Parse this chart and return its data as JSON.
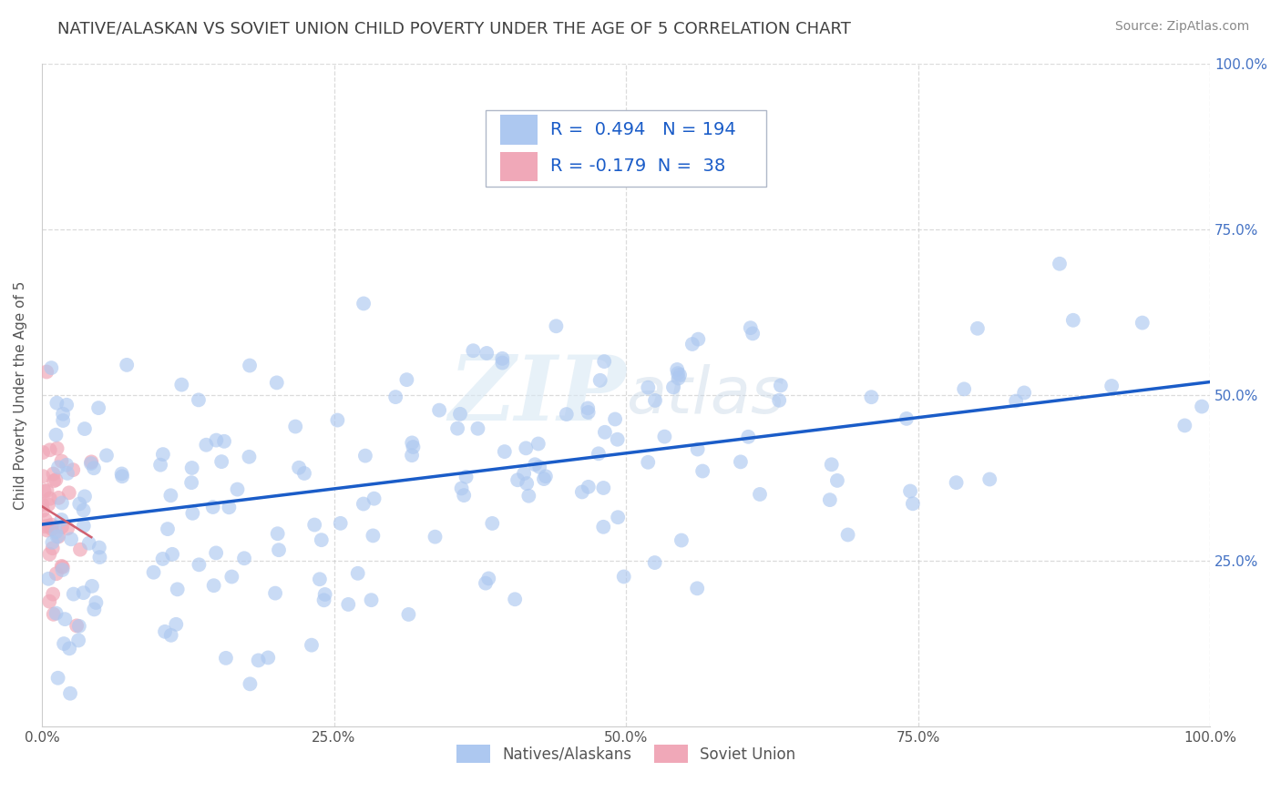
{
  "title": "NATIVE/ALASKAN VS SOVIET UNION CHILD POVERTY UNDER THE AGE OF 5 CORRELATION CHART",
  "source": "Source: ZipAtlas.com",
  "ylabel": "Child Poverty Under the Age of 5",
  "r_native": 0.494,
  "n_native": 194,
  "r_soviet": -0.179,
  "n_soviet": 38,
  "xlim": [
    0.0,
    1.0
  ],
  "ylim": [
    0.0,
    1.0
  ],
  "xticks": [
    0.0,
    0.25,
    0.5,
    0.75,
    1.0
  ],
  "yticks": [
    0.25,
    0.5,
    0.75,
    1.0
  ],
  "xticklabels": [
    "0.0%",
    "25.0%",
    "50.0%",
    "75.0%",
    "100.0%"
  ],
  "yticklabels": [
    "25.0%",
    "50.0%",
    "75.0%",
    "100.0%"
  ],
  "native_color": "#adc8f0",
  "soviet_color": "#f0a8b8",
  "line_color": "#1a5cc8",
  "soviet_line_color": "#d06070",
  "watermark": "ZIPatlas",
  "background_color": "#ffffff",
  "grid_color": "#cccccc",
  "title_color": "#404040",
  "legend_label_native": "Natives/Alaskans",
  "legend_label_soviet": "Soviet Union",
  "title_fontsize": 13,
  "axis_label_fontsize": 11,
  "tick_fontsize": 11,
  "legend_fontsize": 12,
  "annotation_fontsize": 14,
  "line_intercept": 0.305,
  "line_slope": 0.215,
  "soviet_line_intercept": 0.33,
  "soviet_line_slope": -0.8
}
